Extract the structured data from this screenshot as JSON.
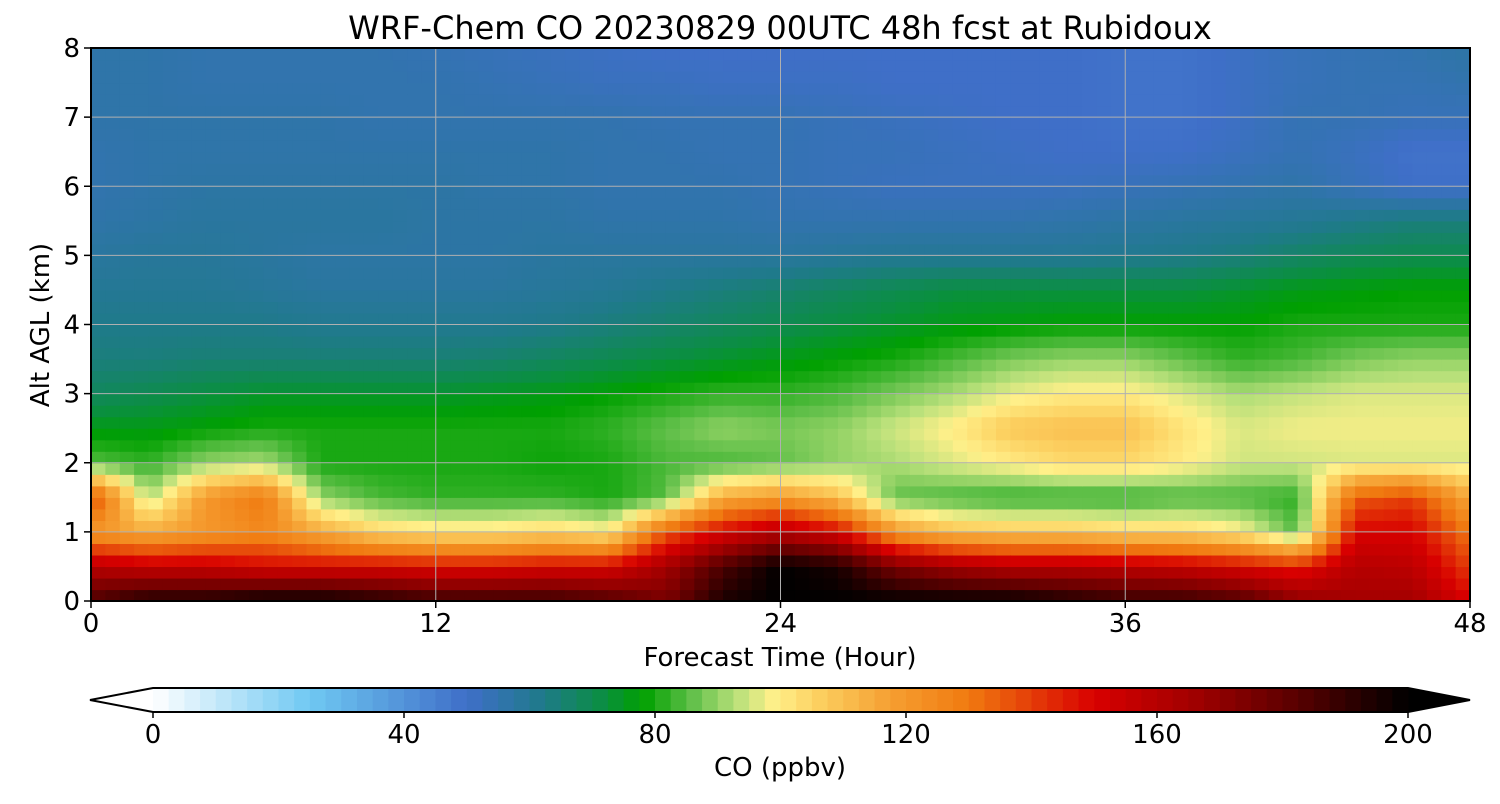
{
  "chart_data": {
    "type": "heatmap",
    "title": "WRF-Chem CO  20230829 00UTC 48h fcst at Rubidoux",
    "xlabel": "Forecast Time (Hour)",
    "ylabel": "Alt AGL (km)",
    "xlim": [
      0,
      48
    ],
    "ylim": [
      0,
      8
    ],
    "x_ticks": [
      0,
      12,
      24,
      36,
      48
    ],
    "y_ticks": [
      0,
      1,
      2,
      3,
      4,
      5,
      6,
      7,
      8
    ],
    "grid": true,
    "x": [
      0,
      2,
      4,
      6,
      8,
      10,
      12,
      14,
      16,
      18,
      20,
      22,
      24,
      26,
      28,
      30,
      32,
      34,
      36,
      38,
      40,
      42,
      44,
      46,
      48
    ],
    "y": [
      0,
      0.5,
      1,
      1.5,
      2,
      2.5,
      3,
      3.5,
      4,
      4.5,
      5,
      5.5,
      6,
      6.5,
      7,
      7.5,
      8
    ],
    "z_units": "CO  (ppbv)",
    "z": [
      [
        185,
        195,
        195,
        200,
        200,
        195,
        190,
        190,
        190,
        185,
        175,
        195,
        200,
        200,
        200,
        200,
        200,
        195,
        190,
        190,
        185,
        170,
        165,
        165,
        150
      ],
      [
        160,
        155,
        155,
        150,
        150,
        150,
        148,
        148,
        150,
        150,
        165,
        185,
        200,
        195,
        175,
        165,
        160,
        160,
        158,
        155,
        150,
        145,
        160,
        158,
        140
      ],
      [
        120,
        115,
        120,
        125,
        115,
        105,
        102,
        102,
        105,
        100,
        135,
        150,
        160,
        150,
        120,
        110,
        108,
        108,
        105,
        105,
        100,
        85,
        150,
        150,
        130
      ],
      [
        140,
        92,
        120,
        130,
        90,
        84,
        82,
        82,
        82,
        80,
        85,
        115,
        120,
        110,
        86,
        84,
        82,
        82,
        82,
        84,
        84,
        82,
        135,
        140,
        115
      ],
      [
        85,
        82,
        90,
        92,
        80,
        80,
        80,
        80,
        79,
        80,
        84,
        84,
        86,
        90,
        92,
        96,
        100,
        104,
        104,
        100,
        95,
        95,
        96,
        96,
        96
      ],
      [
        76,
        76,
        78,
        80,
        80,
        80,
        80,
        80,
        80,
        82,
        86,
        90,
        88,
        90,
        95,
        100,
        108,
        110,
        110,
        102,
        96,
        98,
        98,
        98,
        98
      ],
      [
        68,
        70,
        72,
        74,
        74,
        74,
        74,
        75,
        76,
        78,
        80,
        82,
        82,
        84,
        88,
        92,
        97,
        100,
        100,
        96,
        92,
        94,
        96,
        96,
        96
      ],
      [
        64,
        64,
        65,
        65,
        65,
        65,
        65,
        66,
        68,
        70,
        72,
        74,
        76,
        78,
        80,
        84,
        88,
        90,
        90,
        86,
        82,
        84,
        88,
        90,
        90
      ],
      [
        62,
        62,
        62,
        62,
        61,
        61,
        61,
        61,
        62,
        64,
        66,
        68,
        70,
        72,
        74,
        76,
        77,
        78,
        78,
        78,
        78,
        80,
        80,
        80,
        80
      ],
      [
        60,
        60,
        60,
        59,
        58,
        58,
        58,
        58,
        59,
        60,
        62,
        64,
        66,
        68,
        70,
        72,
        72,
        72,
        72,
        72,
        74,
        76,
        77,
        78,
        78
      ],
      [
        58,
        59,
        59,
        58,
        57,
        57,
        57,
        57,
        58,
        58,
        58,
        58,
        58,
        59,
        60,
        60,
        60,
        60,
        61,
        62,
        64,
        67,
        69,
        70,
        70
      ],
      [
        56,
        57,
        58,
        58,
        58,
        58,
        57,
        57,
        57,
        56,
        56,
        56,
        55,
        55,
        55,
        55,
        55,
        56,
        57,
        58,
        59,
        60,
        62,
        64,
        64
      ],
      [
        55,
        56,
        57,
        57,
        57,
        57,
        57,
        56,
        56,
        55,
        55,
        55,
        54,
        53,
        52,
        52,
        52,
        52,
        53,
        54,
        55,
        56,
        53,
        50,
        50
      ],
      [
        55,
        56,
        56,
        56,
        56,
        56,
        56,
        56,
        56,
        55,
        55,
        54,
        54,
        53,
        53,
        52,
        51,
        50,
        50,
        50,
        52,
        54,
        52,
        49,
        49
      ],
      [
        56,
        56,
        56,
        56,
        56,
        55,
        55,
        55,
        55,
        55,
        54,
        54,
        54,
        53,
        52,
        51,
        50,
        50,
        49,
        49,
        51,
        54,
        54,
        53,
        53
      ],
      [
        56,
        56,
        55,
        55,
        55,
        55,
        55,
        54,
        53,
        52,
        52,
        51,
        51,
        51,
        50,
        50,
        50,
        50,
        49,
        49,
        51,
        53,
        54,
        54,
        55
      ],
      [
        56,
        56,
        55,
        55,
        55,
        55,
        54,
        53,
        52,
        51,
        50,
        50,
        50,
        50,
        50,
        50,
        50,
        50,
        49,
        49,
        51,
        53,
        54,
        55,
        57
      ]
    ],
    "colorbar": {
      "label": "CO  (ppbv)",
      "min": 0,
      "max": 200,
      "ticks": [
        0,
        40,
        80,
        120,
        160,
        200
      ],
      "extend": "both",
      "stops": [
        {
          "v": 0,
          "c": "#ffffff"
        },
        {
          "v": 25,
          "c": "#6fc8f2"
        },
        {
          "v": 50,
          "c": "#3f6fc8"
        },
        {
          "v": 62,
          "c": "#1f7a8a"
        },
        {
          "v": 72,
          "c": "#0a8f40"
        },
        {
          "v": 78,
          "c": "#00a000"
        },
        {
          "v": 86,
          "c": "#62c04a"
        },
        {
          "v": 93,
          "c": "#b8e07a"
        },
        {
          "v": 99,
          "c": "#fff08a"
        },
        {
          "v": 106,
          "c": "#fcd060"
        },
        {
          "v": 118,
          "c": "#f59d30"
        },
        {
          "v": 130,
          "c": "#f07a10"
        },
        {
          "v": 150,
          "c": "#d80000"
        },
        {
          "v": 166,
          "c": "#a00000"
        },
        {
          "v": 182,
          "c": "#5a0000"
        },
        {
          "v": 200,
          "c": "#000000"
        }
      ],
      "under_color": "#ffffff",
      "over_color": "#000000"
    }
  }
}
